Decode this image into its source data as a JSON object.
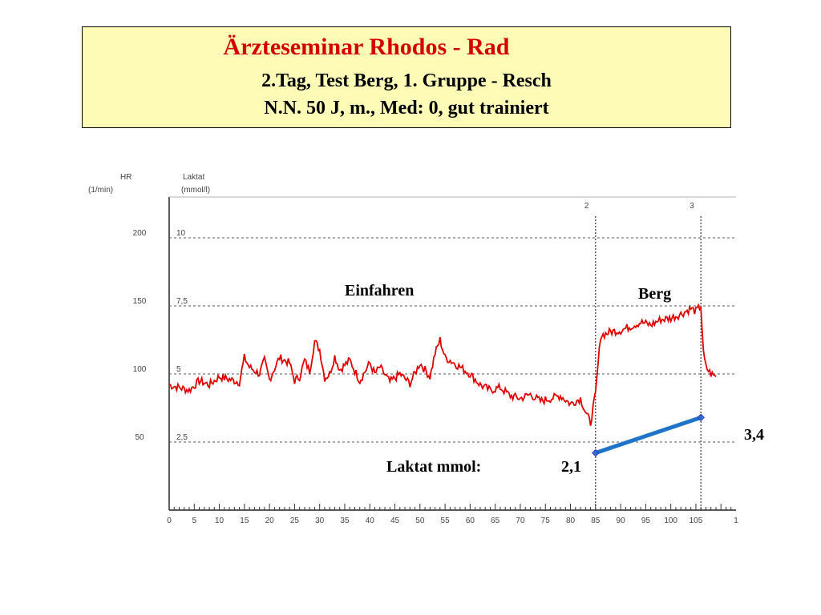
{
  "header": {
    "title": "Ärzteseminar Rhodos - Rad",
    "line1": "2.Tag, Test Berg, 1. Gruppe - Resch",
    "line2": "N.N. 50 J, m.,  Med: 0, gut trainiert"
  },
  "chart_data": {
    "type": "line",
    "left_axis": {
      "label": "HR",
      "unit": "(1/min)",
      "ticks": [
        50,
        100,
        150,
        200
      ],
      "range": [
        0,
        230
      ]
    },
    "right_axis": {
      "label": "Laktat",
      "unit": "(mmol/l)",
      "ticks": [
        "2,5",
        "5",
        "7,5",
        "10"
      ],
      "tick_values": [
        2.5,
        5,
        7.5,
        10
      ],
      "range": [
        0,
        11.5
      ]
    },
    "x_axis": {
      "ticks": [
        0,
        5,
        10,
        15,
        20,
        25,
        30,
        35,
        40,
        45,
        50,
        55,
        60,
        65,
        70,
        75,
        80,
        85,
        90,
        95,
        100,
        105
      ],
      "range": [
        0,
        113
      ],
      "extra_tick_label": "1"
    },
    "grid_lines_hr": [
      50,
      100,
      150,
      200
    ],
    "markers": [
      {
        "x": 85,
        "label": "2"
      },
      {
        "x": 106,
        "label": "3"
      }
    ],
    "series": [
      {
        "name": "HR",
        "color": "#e00000",
        "x": [
          0,
          2,
          4,
          6,
          8,
          10,
          12,
          14,
          15,
          16,
          18,
          19,
          20,
          22,
          24,
          25,
          26,
          27,
          28,
          29,
          30,
          31,
          32,
          33,
          34,
          36,
          38,
          40,
          41,
          42,
          44,
          46,
          48,
          50,
          52,
          53,
          54,
          55,
          56,
          58,
          60,
          62,
          64,
          66,
          68,
          70,
          72,
          74,
          76,
          78,
          80,
          82,
          83,
          84,
          84.5,
          85,
          86,
          88,
          90,
          92,
          94,
          96,
          98,
          100,
          102,
          104,
          105,
          106,
          106.5,
          107,
          108,
          109
        ],
        "values": [
          92,
          90,
          88,
          95,
          92,
          98,
          96,
          94,
          112,
          105,
          100,
          110,
          96,
          112,
          108,
          95,
          98,
          110,
          102,
          124,
          118,
          97,
          100,
          113,
          103,
          110,
          95,
          108,
          100,
          105,
          94,
          100,
          93,
          108,
          98,
          115,
          125,
          112,
          110,
          105,
          100,
          92,
          88,
          90,
          84,
          82,
          85,
          80,
          82,
          84,
          78,
          82,
          72,
          64,
          75,
          85,
          128,
          131,
          132,
          135,
          138,
          136,
          140,
          141,
          144,
          148,
          146,
          150,
          115,
          105,
          100,
          98
        ]
      },
      {
        "name": "Laktat",
        "color": "#1f74c8",
        "x": [
          85,
          106
        ],
        "values": [
          2.1,
          3.4
        ]
      }
    ],
    "annotations": [
      "Einfahren",
      "Berg",
      "Laktat mmol:",
      "2,1",
      "3,4"
    ]
  }
}
